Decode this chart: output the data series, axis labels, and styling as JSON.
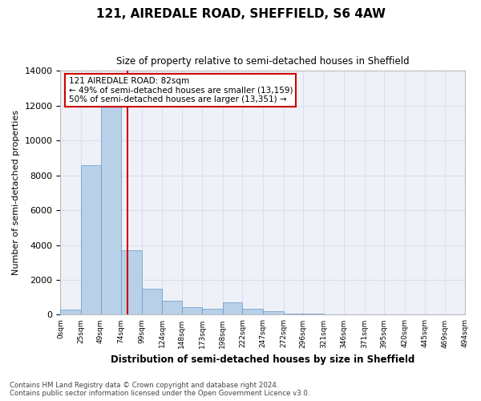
{
  "title": "121, AIREDALE ROAD, SHEFFIELD, S6 4AW",
  "subtitle": "Size of property relative to semi-detached houses in Sheffield",
  "xlabel": "Distribution of semi-detached houses by size in Sheffield",
  "ylabel": "Number of semi-detached properties",
  "footer_line1": "Contains HM Land Registry data © Crown copyright and database right 2024.",
  "footer_line2": "Contains public sector information licensed under the Open Government Licence v3.0.",
  "annotation_title": "121 AIREDALE ROAD: 82sqm",
  "annotation_line1": "← 49% of semi-detached houses are smaller (13,159)",
  "annotation_line2": "50% of semi-detached houses are larger (13,351) →",
  "property_size_sqm": 82,
  "bar_color": "#b8d0e8",
  "bar_edge_color": "#6699cc",
  "vline_color": "#cc0000",
  "annotation_box_edge_color": "#cc0000",
  "grid_color": "#d8dff0",
  "plot_bg_color": "#eef2f8",
  "bin_edges": [
    0,
    25,
    49,
    74,
    99,
    124,
    148,
    173,
    198,
    222,
    247,
    272,
    296,
    321,
    346,
    371,
    395,
    420,
    445,
    469,
    494
  ],
  "bin_labels": [
    "0sqm",
    "25sqm",
    "49sqm",
    "74sqm",
    "99sqm",
    "124sqm",
    "148sqm",
    "173sqm",
    "198sqm",
    "222sqm",
    "247sqm",
    "272sqm",
    "296sqm",
    "321sqm",
    "346sqm",
    "371sqm",
    "395sqm",
    "420sqm",
    "445sqm",
    "469sqm",
    "494sqm"
  ],
  "counts": [
    290,
    8600,
    13200,
    3700,
    1500,
    800,
    450,
    350,
    700,
    350,
    200,
    60,
    80,
    5,
    3,
    2,
    1,
    0,
    0,
    0
  ],
  "ylim": [
    0,
    14000
  ],
  "yticks": [
    0,
    2000,
    4000,
    6000,
    8000,
    10000,
    12000,
    14000
  ]
}
